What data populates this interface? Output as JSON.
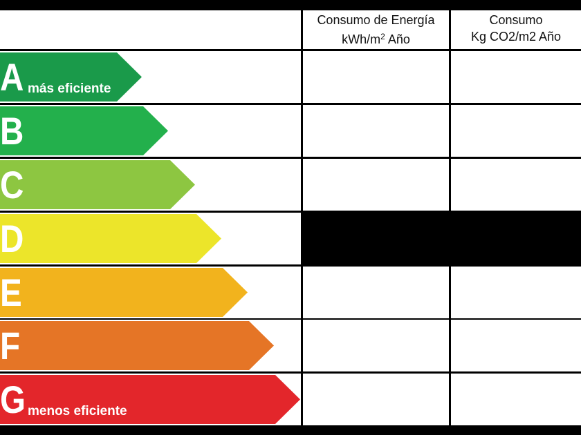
{
  "header": {
    "columns": [
      {
        "line1": "Consumo de Energía",
        "unit": "kWh/m",
        "superscript": "2",
        "unit_tail": "Año"
      },
      {
        "line1": "Consumo",
        "line2": "Kg CO2/m2 Año"
      }
    ]
  },
  "rows": [
    {
      "letter": "A",
      "label": "más eficiente"
    },
    {
      "letter": "B"
    },
    {
      "letter": "C"
    },
    {
      "letter": "D"
    },
    {
      "letter": "E"
    },
    {
      "letter": "F"
    },
    {
      "letter": "G",
      "label": "menos eficiente"
    }
  ]
}
